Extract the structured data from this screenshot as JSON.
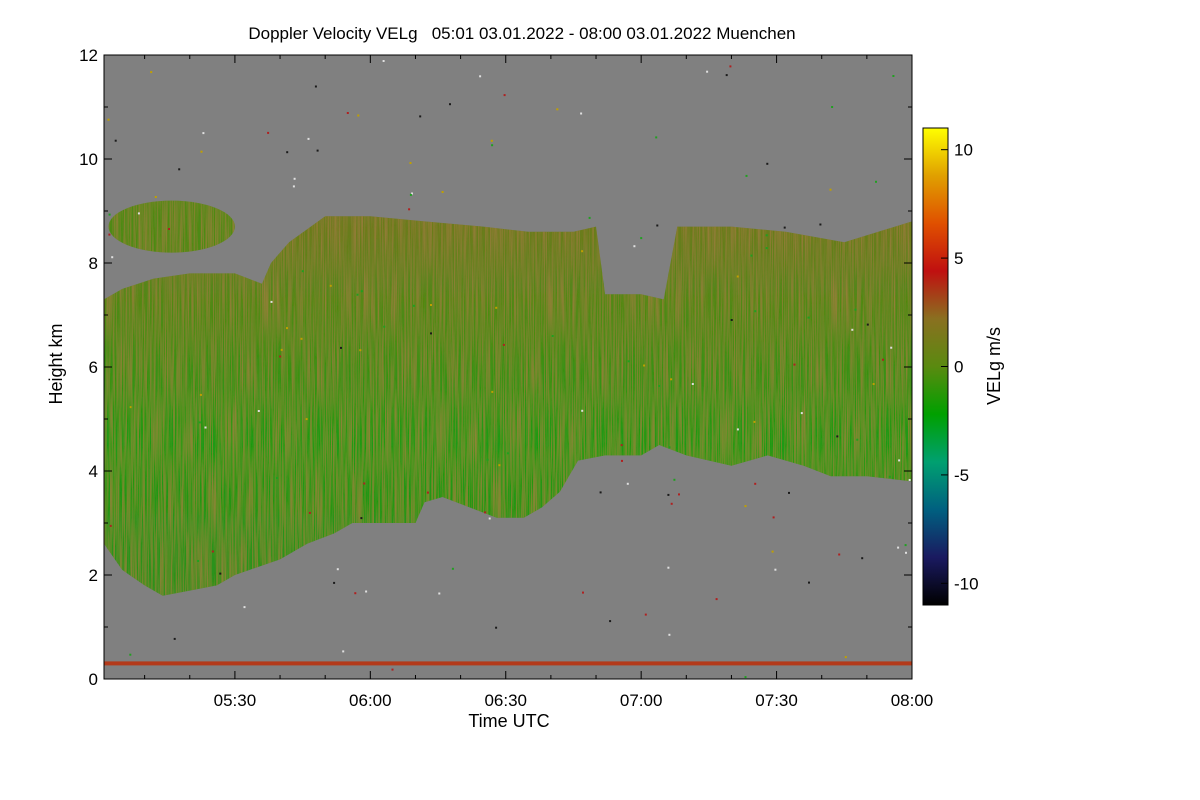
{
  "chart_data": {
    "type": "heatmap",
    "title": "Doppler Velocity VELg   05:01 03.01.2022 - 08:00 03.01.2022 Muenchen",
    "xlabel": "Time UTC",
    "ylabel": "Height km",
    "x_range_minutes": [
      301,
      480
    ],
    "ylim": [
      0,
      12
    ],
    "x_ticks": [
      {
        "label": "05:30",
        "minutes": 330
      },
      {
        "label": "06:00",
        "minutes": 360
      },
      {
        "label": "06:30",
        "minutes": 390
      },
      {
        "label": "07:00",
        "minutes": 420
      },
      {
        "label": "07:30",
        "minutes": 450
      },
      {
        "label": "08:00",
        "minutes": 480
      }
    ],
    "y_ticks": [
      0,
      2,
      4,
      6,
      8,
      10,
      12
    ],
    "colorbar": {
      "label": "VELg m/s",
      "range": [
        -11,
        11
      ],
      "ticks": [
        10,
        5,
        0,
        -5,
        -10
      ],
      "colors": [
        "#000000",
        "#1a1a60",
        "#006080",
        "#00a070",
        "#00a000",
        "#5a8a10",
        "#8a7020",
        "#c01010",
        "#e05000",
        "#e0a000",
        "#ffff00"
      ]
    },
    "no_data_color": "#808080",
    "echo": {
      "description": "Precipitation/cloud layer with mostly slightly negative (green) velocities, brownish-red near 0 to +2 m/s in upper parts",
      "cloud_top_km": [
        [
          301,
          7.3
        ],
        [
          305,
          7.5
        ],
        [
          312,
          7.7
        ],
        [
          320,
          7.8
        ],
        [
          330,
          7.8
        ],
        [
          336,
          7.6
        ],
        [
          338,
          8.0
        ],
        [
          342,
          8.4
        ],
        [
          350,
          8.9
        ],
        [
          360,
          8.9
        ],
        [
          372,
          8.8
        ],
        [
          385,
          8.7
        ],
        [
          395,
          8.6
        ],
        [
          405,
          8.6
        ],
        [
          410,
          8.7
        ],
        [
          412,
          7.4
        ],
        [
          420,
          7.4
        ],
        [
          425,
          7.3
        ],
        [
          428,
          8.7
        ],
        [
          440,
          8.7
        ],
        [
          452,
          8.6
        ],
        [
          465,
          8.4
        ],
        [
          480,
          8.8
        ]
      ],
      "cloud_base_km": [
        [
          301,
          2.6
        ],
        [
          305,
          2.1
        ],
        [
          310,
          1.8
        ],
        [
          314,
          1.6
        ],
        [
          320,
          1.7
        ],
        [
          326,
          1.8
        ],
        [
          330,
          2.0
        ],
        [
          340,
          2.3
        ],
        [
          346,
          2.6
        ],
        [
          352,
          2.8
        ],
        [
          356,
          3.0
        ],
        [
          362,
          3.0
        ],
        [
          366,
          3.0
        ],
        [
          370,
          3.0
        ],
        [
          372,
          3.4
        ],
        [
          376,
          3.5
        ],
        [
          382,
          3.3
        ],
        [
          388,
          3.1
        ],
        [
          394,
          3.1
        ],
        [
          398,
          3.3
        ],
        [
          402,
          3.6
        ],
        [
          406,
          4.2
        ],
        [
          412,
          4.3
        ],
        [
          420,
          4.3
        ],
        [
          424,
          4.5
        ],
        [
          430,
          4.3
        ],
        [
          440,
          4.1
        ],
        [
          448,
          4.3
        ],
        [
          456,
          4.1
        ],
        [
          462,
          3.9
        ],
        [
          470,
          3.9
        ],
        [
          480,
          3.8
        ]
      ],
      "upper_patch_km": {
        "x": [
          302,
          330
        ],
        "top": 9.2,
        "base": 8.2
      },
      "surface_clutter_km": 0.3
    }
  }
}
